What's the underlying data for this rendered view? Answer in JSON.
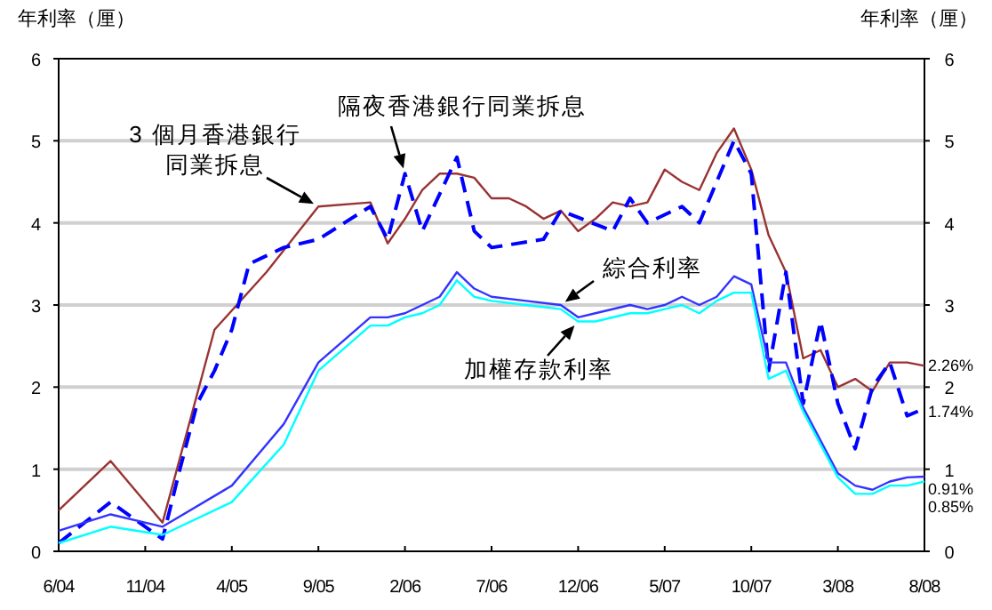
{
  "chart_data": {
    "type": "line",
    "ylabel": "年利率（厘）",
    "y2label": "年利率（厘）",
    "xlim": [
      "2004-06",
      "2008-08"
    ],
    "xticks": [
      {
        "value": "2004-06",
        "label": "6/04"
      },
      {
        "value": "2004-11",
        "label": "11/04"
      },
      {
        "value": "2005-04",
        "label": "4/05"
      },
      {
        "value": "2005-09",
        "label": "9/05"
      },
      {
        "value": "2006-02",
        "label": "2/06"
      },
      {
        "value": "2006-07",
        "label": "7/06"
      },
      {
        "value": "2006-12",
        "label": "12/06"
      },
      {
        "value": "2007-05",
        "label": "5/07"
      },
      {
        "value": "2007-10",
        "label": "10/07"
      },
      {
        "value": "2008-03",
        "label": "3/08"
      },
      {
        "value": "2008-08",
        "label": "8/08"
      }
    ],
    "ylim": [
      0,
      6
    ],
    "yticks": [
      0,
      1,
      2,
      3,
      4,
      5,
      6
    ],
    "y2lim": [
      0,
      6
    ],
    "y2ticks": [
      0,
      1,
      2,
      3,
      4,
      5,
      6
    ],
    "grid": "y",
    "marker": "none",
    "series": [
      {
        "name": "3 個月香港銀行同業拆息",
        "color": "#993333",
        "line_style": "solid",
        "x": [
          "2004-06",
          "2004-09",
          "2004-12",
          "2005-03",
          "2005-06",
          "2005-09",
          "2005-12",
          "2006-01",
          "2006-02",
          "2006-03",
          "2006-04",
          "2006-05",
          "2006-06",
          "2006-07",
          "2006-08",
          "2006-09",
          "2006-10",
          "2006-11",
          "2006-12",
          "2007-01",
          "2007-02",
          "2007-03",
          "2007-04",
          "2007-05",
          "2007-06",
          "2007-07",
          "2007-08",
          "2007-09",
          "2007-10",
          "2007-11",
          "2007-12",
          "2008-01",
          "2008-02",
          "2008-03",
          "2008-04",
          "2008-05",
          "2008-06",
          "2008-07",
          "2008-08"
        ],
        "values": [
          0.5,
          1.1,
          0.35,
          2.7,
          3.4,
          4.2,
          4.25,
          3.75,
          4.05,
          4.4,
          4.6,
          4.6,
          4.55,
          4.3,
          4.3,
          4.2,
          4.05,
          4.15,
          3.9,
          4.05,
          4.25,
          4.2,
          4.25,
          4.65,
          4.5,
          4.4,
          4.85,
          5.15,
          4.65,
          3.85,
          3.4,
          2.35,
          2.45,
          2.0,
          2.1,
          1.95,
          2.3,
          2.3,
          2.26
        ],
        "value_labels": [
          null,
          null,
          null,
          null,
          null,
          null,
          null,
          null,
          null,
          null,
          null,
          null,
          null,
          null,
          null,
          null,
          null,
          null,
          null,
          null,
          null,
          null,
          null,
          null,
          null,
          null,
          null,
          null,
          null,
          null,
          null,
          null,
          null,
          null,
          null,
          null,
          null,
          null,
          "2.26%"
        ]
      },
      {
        "name": "隔夜香港銀行同業拆息",
        "color": "#0000ff",
        "line_style": "dashed",
        "x": [
          "2004-06",
          "2004-09",
          "2004-12",
          "2005-01",
          "2005-02",
          "2005-03",
          "2005-04",
          "2005-05",
          "2005-06",
          "2005-07",
          "2005-09",
          "2005-12",
          "2006-01",
          "2006-02",
          "2006-03",
          "2006-05",
          "2006-06",
          "2006-07",
          "2006-10",
          "2006-11",
          "2007-02",
          "2007-03",
          "2007-04",
          "2007-06",
          "2007-07",
          "2007-09",
          "2007-10",
          "2007-11",
          "2007-12",
          "2008-01",
          "2008-02",
          "2008-03",
          "2008-04",
          "2008-05",
          "2008-06",
          "2008-07",
          "2008-08"
        ],
        "values": [
          0.1,
          0.6,
          0.15,
          1.0,
          1.8,
          2.2,
          2.7,
          3.5,
          3.6,
          3.7,
          3.8,
          4.2,
          3.8,
          4.6,
          3.9,
          4.8,
          3.9,
          3.7,
          3.8,
          4.15,
          3.9,
          4.3,
          4.0,
          4.2,
          4.0,
          5.0,
          4.6,
          2.2,
          3.4,
          1.8,
          2.8,
          1.8,
          1.25,
          2.0,
          2.3,
          1.65,
          1.74
        ],
        "value_labels": [
          null,
          null,
          null,
          null,
          null,
          null,
          null,
          null,
          null,
          null,
          null,
          null,
          null,
          null,
          null,
          null,
          null,
          null,
          null,
          null,
          null,
          null,
          null,
          null,
          null,
          null,
          null,
          null,
          null,
          null,
          null,
          null,
          null,
          null,
          null,
          null,
          "1.74%"
        ]
      },
      {
        "name": "綜合利率",
        "color": "#3333ff",
        "line_style": "solid",
        "x": [
          "2004-06",
          "2004-09",
          "2004-12",
          "2005-04",
          "2005-07",
          "2005-09",
          "2005-12",
          "2006-01",
          "2006-02",
          "2006-03",
          "2006-04",
          "2006-05",
          "2006-06",
          "2006-07",
          "2006-09",
          "2006-11",
          "2006-12",
          "2007-01",
          "2007-03",
          "2007-04",
          "2007-05",
          "2007-06",
          "2007-07",
          "2007-08",
          "2007-09",
          "2007-10",
          "2007-11",
          "2007-12",
          "2008-01",
          "2008-02",
          "2008-03",
          "2008-04",
          "2008-05",
          "2008-06",
          "2008-07",
          "2008-08"
        ],
        "values": [
          0.25,
          0.45,
          0.3,
          0.8,
          1.55,
          2.3,
          2.85,
          2.85,
          2.9,
          3.0,
          3.1,
          3.4,
          3.2,
          3.1,
          3.05,
          3.0,
          2.85,
          2.9,
          3.0,
          2.95,
          3.0,
          3.1,
          3.0,
          3.1,
          3.35,
          3.25,
          2.3,
          2.3,
          1.75,
          1.35,
          0.95,
          0.8,
          0.75,
          0.85,
          0.9,
          0.91
        ],
        "value_labels": [
          null,
          null,
          null,
          null,
          null,
          null,
          null,
          null,
          null,
          null,
          null,
          null,
          null,
          null,
          null,
          null,
          null,
          null,
          null,
          null,
          null,
          null,
          null,
          null,
          null,
          null,
          null,
          null,
          null,
          null,
          null,
          null,
          null,
          null,
          null,
          "0.91%"
        ]
      },
      {
        "name": "加權存款利率",
        "color": "#00ffff",
        "line_style": "solid",
        "x": [
          "2004-06",
          "2004-09",
          "2004-12",
          "2005-04",
          "2005-07",
          "2005-09",
          "2005-12",
          "2006-01",
          "2006-02",
          "2006-03",
          "2006-04",
          "2006-05",
          "2006-06",
          "2006-07",
          "2006-09",
          "2006-11",
          "2006-12",
          "2007-01",
          "2007-03",
          "2007-04",
          "2007-05",
          "2007-06",
          "2007-07",
          "2007-08",
          "2007-09",
          "2007-10",
          "2007-11",
          "2007-12",
          "2008-01",
          "2008-02",
          "2008-03",
          "2008-04",
          "2008-05",
          "2008-06",
          "2008-07",
          "2008-08"
        ],
        "values": [
          0.1,
          0.3,
          0.2,
          0.6,
          1.3,
          2.2,
          2.75,
          2.75,
          2.85,
          2.9,
          3.0,
          3.3,
          3.1,
          3.05,
          3.0,
          2.95,
          2.8,
          2.8,
          2.9,
          2.9,
          2.95,
          3.0,
          2.9,
          3.05,
          3.15,
          3.15,
          2.1,
          2.2,
          1.7,
          1.3,
          0.9,
          0.7,
          0.7,
          0.8,
          0.8,
          0.85
        ],
        "value_labels": [
          null,
          null,
          null,
          null,
          null,
          null,
          null,
          null,
          null,
          null,
          null,
          null,
          null,
          null,
          null,
          null,
          null,
          null,
          null,
          null,
          null,
          null,
          null,
          null,
          null,
          null,
          null,
          null,
          null,
          null,
          null,
          null,
          null,
          null,
          null,
          "0.85%"
        ]
      }
    ]
  }
}
